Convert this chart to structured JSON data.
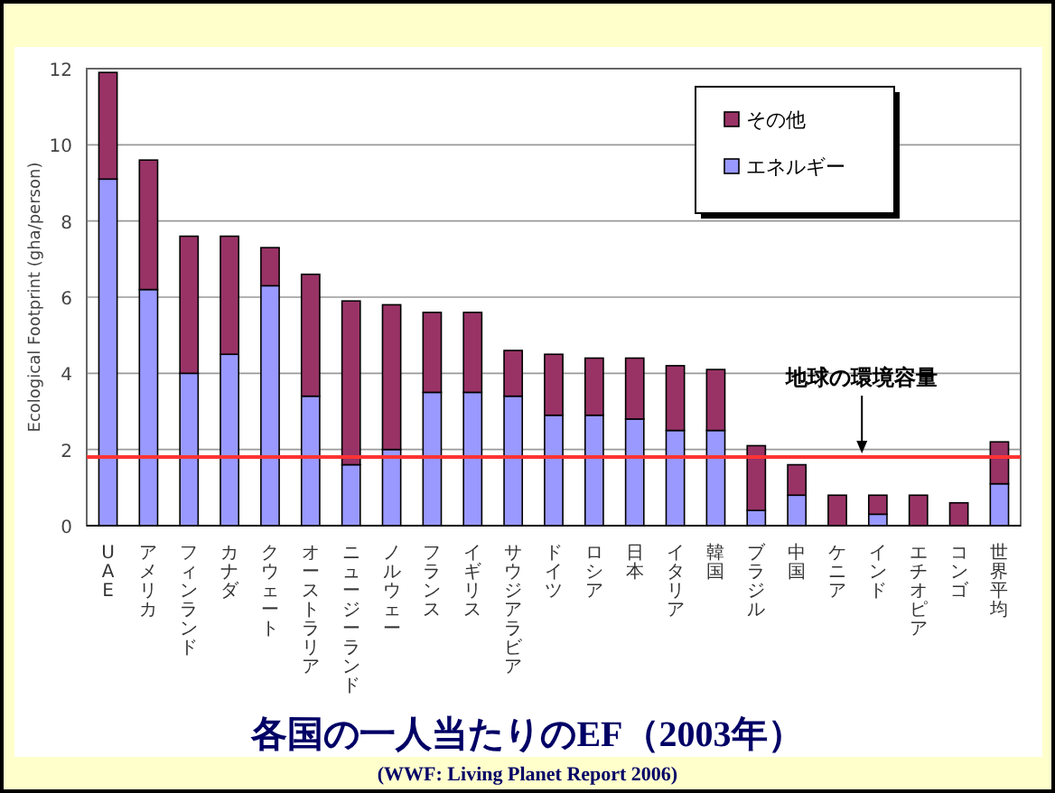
{
  "chart_data": {
    "type": "bar",
    "title": "各国の一人当たりのEF（2003年）",
    "ylabel": "Ecological Footprint (gha/person)",
    "annotations": [
      "(WWF: Living Planet Report 2006)"
    ],
    "categories": [
      "UAE",
      "アメリカ",
      "フィンランド",
      "カナダ",
      "クウェート",
      "オーストラリア",
      "ニュージーランド",
      "ノルウェー",
      "フランス",
      "イギリス",
      "サウジアラビア",
      "ドイツ",
      "ロシア",
      "日本",
      "イタリア",
      "韓国",
      "ブラジル",
      "中国",
      "ケニア",
      "インド",
      "エチオピア",
      "コンゴ",
      "世界平均"
    ],
    "stacked": true,
    "series": [
      {
        "name": "エネルギー",
        "color": "#9999ff",
        "values": [
          9.1,
          6.2,
          4.0,
          4.5,
          6.3,
          3.4,
          1.6,
          2.0,
          3.5,
          3.5,
          3.4,
          2.9,
          2.9,
          2.8,
          2.5,
          2.5,
          0.4,
          0.8,
          null,
          0.3,
          null,
          null,
          1.1
        ]
      },
      {
        "name": "その他",
        "color": "#993366",
        "values": [
          2.8,
          3.4,
          3.6,
          3.1,
          1.0,
          3.2,
          4.3,
          3.8,
          2.1,
          2.1,
          1.2,
          1.6,
          1.5,
          1.6,
          1.7,
          1.6,
          1.7,
          0.8,
          0.8,
          0.5,
          0.8,
          0.6,
          1.1
        ]
      }
    ],
    "ylim": [
      0,
      12
    ],
    "yticks": [
      0,
      2,
      4,
      6,
      8,
      10,
      12
    ],
    "grid": "y",
    "legend": "top right",
    "ref_lines": [
      {
        "axis": "y",
        "value": 1.8,
        "label": "地球の環境容量",
        "color": "#ff3333"
      }
    ]
  }
}
